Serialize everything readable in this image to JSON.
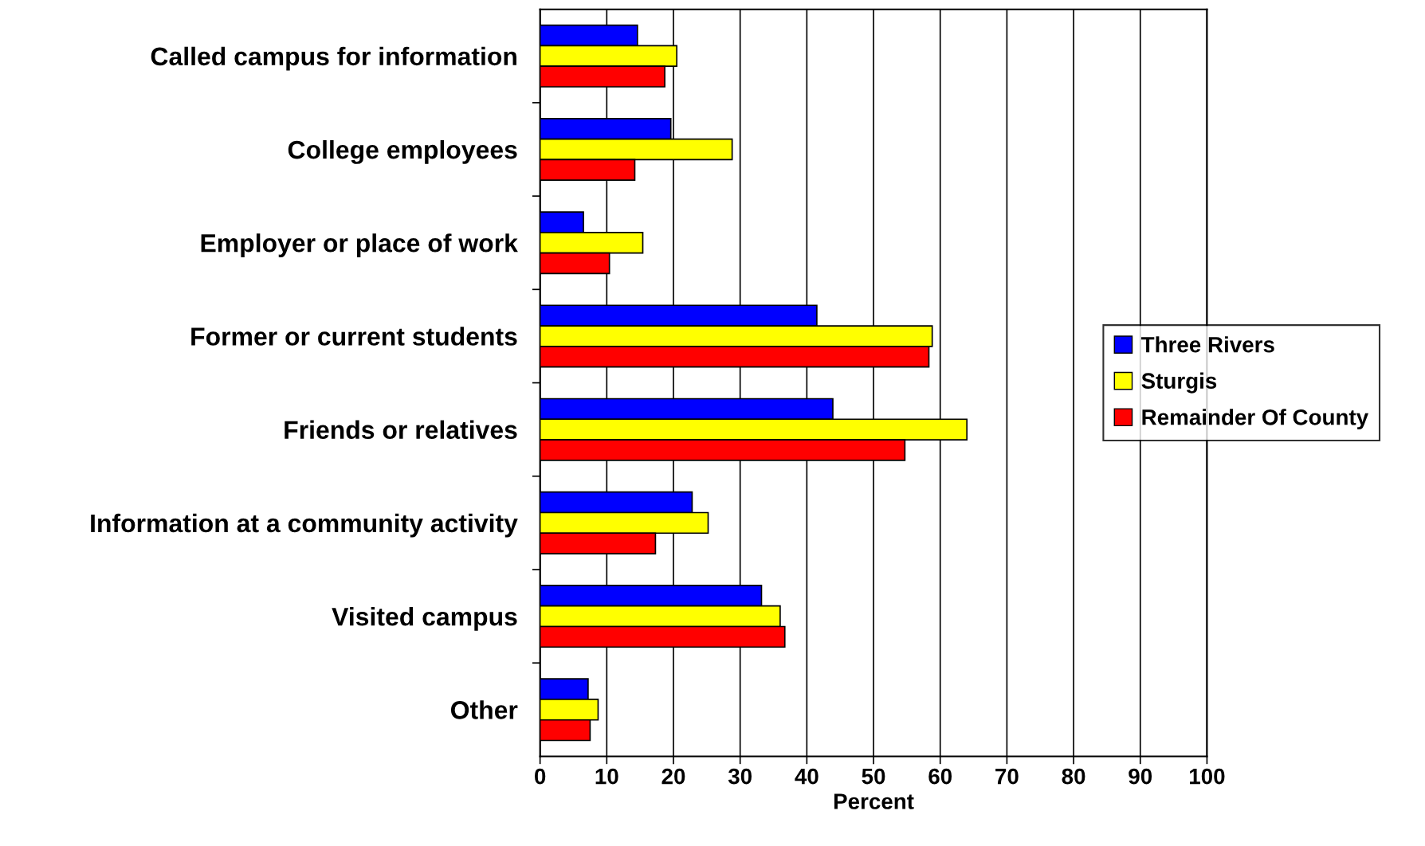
{
  "chart_data": {
    "type": "bar",
    "orientation": "horizontal",
    "xlabel": "Percent",
    "categories": [
      "Called campus for information",
      "College employees",
      "Employer or place of work",
      "Former or current students",
      "Friends or relatives",
      "Information at a community activity",
      "Visited campus",
      "Other"
    ],
    "series": [
      {
        "name": "Three Rivers",
        "color": "#0000ff",
        "values": [
          14.6,
          19.6,
          6.5,
          41.5,
          43.9,
          22.8,
          33.2,
          7.2
        ]
      },
      {
        "name": "Sturgis",
        "color": "#ffff00",
        "values": [
          20.5,
          28.8,
          15.4,
          58.8,
          64.0,
          25.2,
          36.0,
          8.7
        ]
      },
      {
        "name": "Remainder Of County",
        "color": "#ff0000",
        "values": [
          18.7,
          14.2,
          10.4,
          58.3,
          54.7,
          17.3,
          36.7,
          7.5
        ]
      }
    ],
    "xlim": [
      0,
      100
    ],
    "xticks": [
      0,
      10,
      20,
      30,
      40,
      50,
      60,
      70,
      80,
      90,
      100
    ],
    "grid": "x",
    "legend": "right"
  }
}
